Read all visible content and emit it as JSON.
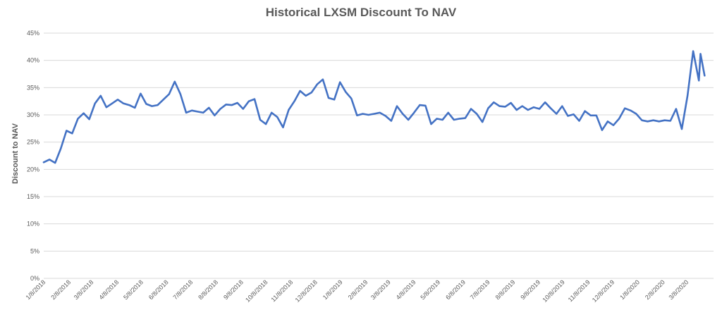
{
  "chart_data": {
    "type": "line",
    "title": "Historical LXSM Discount To NAV",
    "xlabel": "",
    "ylabel": "Discount to NAV",
    "ylim": [
      0,
      45
    ],
    "grid": true,
    "y_ticks": [
      "0%",
      "5%",
      "10%",
      "15%",
      "20%",
      "25%",
      "30%",
      "35%",
      "40%",
      "45%"
    ],
    "x_tick_labels": [
      "1/8/2018",
      "2/8/2018",
      "3/8/2018",
      "4/8/2018",
      "5/8/2018",
      "6/8/2018",
      "7/8/2018",
      "8/8/2018",
      "9/8/2018",
      "10/8/2018",
      "11/8/2018",
      "12/8/2018",
      "1/8/2019",
      "2/8/2019",
      "3/8/2019",
      "4/8/2019",
      "5/8/2019",
      "6/8/2019",
      "7/8/2019",
      "8/8/2019",
      "9/8/2019",
      "10/8/2019",
      "11/8/2019",
      "12/8/2019",
      "1/8/2020",
      "2/8/2020",
      "3/8/2020"
    ],
    "x_start": "2018-01-08",
    "x_end": "2020-04-10",
    "color": "#4472C4",
    "series": [
      {
        "name": "Discount to NAV",
        "points": [
          [
            "2018-01-08",
            21.3
          ],
          [
            "2018-01-15",
            21.8
          ],
          [
            "2018-01-22",
            21.2
          ],
          [
            "2018-01-29",
            23.8
          ],
          [
            "2018-02-05",
            27.1
          ],
          [
            "2018-02-12",
            26.6
          ],
          [
            "2018-02-19",
            29.3
          ],
          [
            "2018-02-26",
            30.3
          ],
          [
            "2018-03-05",
            29.2
          ],
          [
            "2018-03-12",
            32.1
          ],
          [
            "2018-03-19",
            33.5
          ],
          [
            "2018-03-26",
            31.4
          ],
          [
            "2018-04-02",
            32.1
          ],
          [
            "2018-04-09",
            32.8
          ],
          [
            "2018-04-16",
            32.1
          ],
          [
            "2018-04-23",
            31.8
          ],
          [
            "2018-04-30",
            31.3
          ],
          [
            "2018-05-07",
            33.9
          ],
          [
            "2018-05-14",
            32.0
          ],
          [
            "2018-05-21",
            31.6
          ],
          [
            "2018-05-28",
            31.8
          ],
          [
            "2018-06-04",
            32.8
          ],
          [
            "2018-06-11",
            33.8
          ],
          [
            "2018-06-18",
            36.1
          ],
          [
            "2018-06-25",
            33.8
          ],
          [
            "2018-07-02",
            30.4
          ],
          [
            "2018-07-09",
            30.8
          ],
          [
            "2018-07-16",
            30.6
          ],
          [
            "2018-07-23",
            30.4
          ],
          [
            "2018-07-30",
            31.3
          ],
          [
            "2018-08-06",
            29.9
          ],
          [
            "2018-08-13",
            31.1
          ],
          [
            "2018-08-20",
            31.9
          ],
          [
            "2018-08-27",
            31.8
          ],
          [
            "2018-09-03",
            32.2
          ],
          [
            "2018-09-10",
            31.1
          ],
          [
            "2018-09-17",
            32.5
          ],
          [
            "2018-09-24",
            32.9
          ],
          [
            "2018-10-01",
            29.1
          ],
          [
            "2018-10-08",
            28.3
          ],
          [
            "2018-10-15",
            30.4
          ],
          [
            "2018-10-22",
            29.6
          ],
          [
            "2018-10-29",
            27.7
          ],
          [
            "2018-11-05",
            30.9
          ],
          [
            "2018-11-12",
            32.5
          ],
          [
            "2018-11-19",
            34.4
          ],
          [
            "2018-11-26",
            33.5
          ],
          [
            "2018-12-03",
            34.1
          ],
          [
            "2018-12-10",
            35.6
          ],
          [
            "2018-12-17",
            36.5
          ],
          [
            "2018-12-24",
            33.1
          ],
          [
            "2018-12-31",
            32.8
          ],
          [
            "2019-01-07",
            36.0
          ],
          [
            "2019-01-14",
            34.2
          ],
          [
            "2019-01-21",
            33.0
          ],
          [
            "2019-01-28",
            29.9
          ],
          [
            "2019-02-04",
            30.2
          ],
          [
            "2019-02-11",
            30.0
          ],
          [
            "2019-02-18",
            30.2
          ],
          [
            "2019-02-25",
            30.4
          ],
          [
            "2019-03-04",
            29.8
          ],
          [
            "2019-03-11",
            28.9
          ],
          [
            "2019-03-18",
            31.6
          ],
          [
            "2019-03-25",
            30.2
          ],
          [
            "2019-04-01",
            29.1
          ],
          [
            "2019-04-08",
            30.4
          ],
          [
            "2019-04-15",
            31.8
          ],
          [
            "2019-04-22",
            31.7
          ],
          [
            "2019-04-29",
            28.3
          ],
          [
            "2019-05-06",
            29.3
          ],
          [
            "2019-05-13",
            29.1
          ],
          [
            "2019-05-20",
            30.4
          ],
          [
            "2019-05-27",
            29.1
          ],
          [
            "2019-06-03",
            29.3
          ],
          [
            "2019-06-10",
            29.4
          ],
          [
            "2019-06-17",
            31.1
          ],
          [
            "2019-06-24",
            30.2
          ],
          [
            "2019-07-01",
            28.7
          ],
          [
            "2019-07-08",
            31.2
          ],
          [
            "2019-07-15",
            32.3
          ],
          [
            "2019-07-22",
            31.6
          ],
          [
            "2019-07-29",
            31.5
          ],
          [
            "2019-08-05",
            32.2
          ],
          [
            "2019-08-12",
            30.9
          ],
          [
            "2019-08-19",
            31.6
          ],
          [
            "2019-08-26",
            30.9
          ],
          [
            "2019-09-02",
            31.4
          ],
          [
            "2019-09-09",
            31.1
          ],
          [
            "2019-09-16",
            32.3
          ],
          [
            "2019-09-23",
            31.2
          ],
          [
            "2019-09-30",
            30.2
          ],
          [
            "2019-10-07",
            31.6
          ],
          [
            "2019-10-14",
            29.8
          ],
          [
            "2019-10-21",
            30.1
          ],
          [
            "2019-10-28",
            28.9
          ],
          [
            "2019-11-04",
            30.7
          ],
          [
            "2019-11-11",
            29.9
          ],
          [
            "2019-11-18",
            29.9
          ],
          [
            "2019-11-25",
            27.2
          ],
          [
            "2019-12-02",
            28.8
          ],
          [
            "2019-12-09",
            28.1
          ],
          [
            "2019-12-16",
            29.3
          ],
          [
            "2019-12-23",
            31.2
          ],
          [
            "2019-12-30",
            30.8
          ],
          [
            "2020-01-06",
            30.2
          ],
          [
            "2020-01-13",
            29.0
          ],
          [
            "2020-01-20",
            28.8
          ],
          [
            "2020-01-27",
            29.0
          ],
          [
            "2020-02-03",
            28.8
          ],
          [
            "2020-02-10",
            29.0
          ],
          [
            "2020-02-17",
            28.9
          ],
          [
            "2020-02-24",
            31.1
          ],
          [
            "2020-03-02",
            27.4
          ],
          [
            "2020-03-09",
            33.5
          ],
          [
            "2020-03-16",
            41.7
          ],
          [
            "2020-03-23",
            36.3
          ],
          [
            "2020-03-25",
            41.2
          ],
          [
            "2020-03-30",
            37.2
          ]
        ]
      }
    ]
  }
}
